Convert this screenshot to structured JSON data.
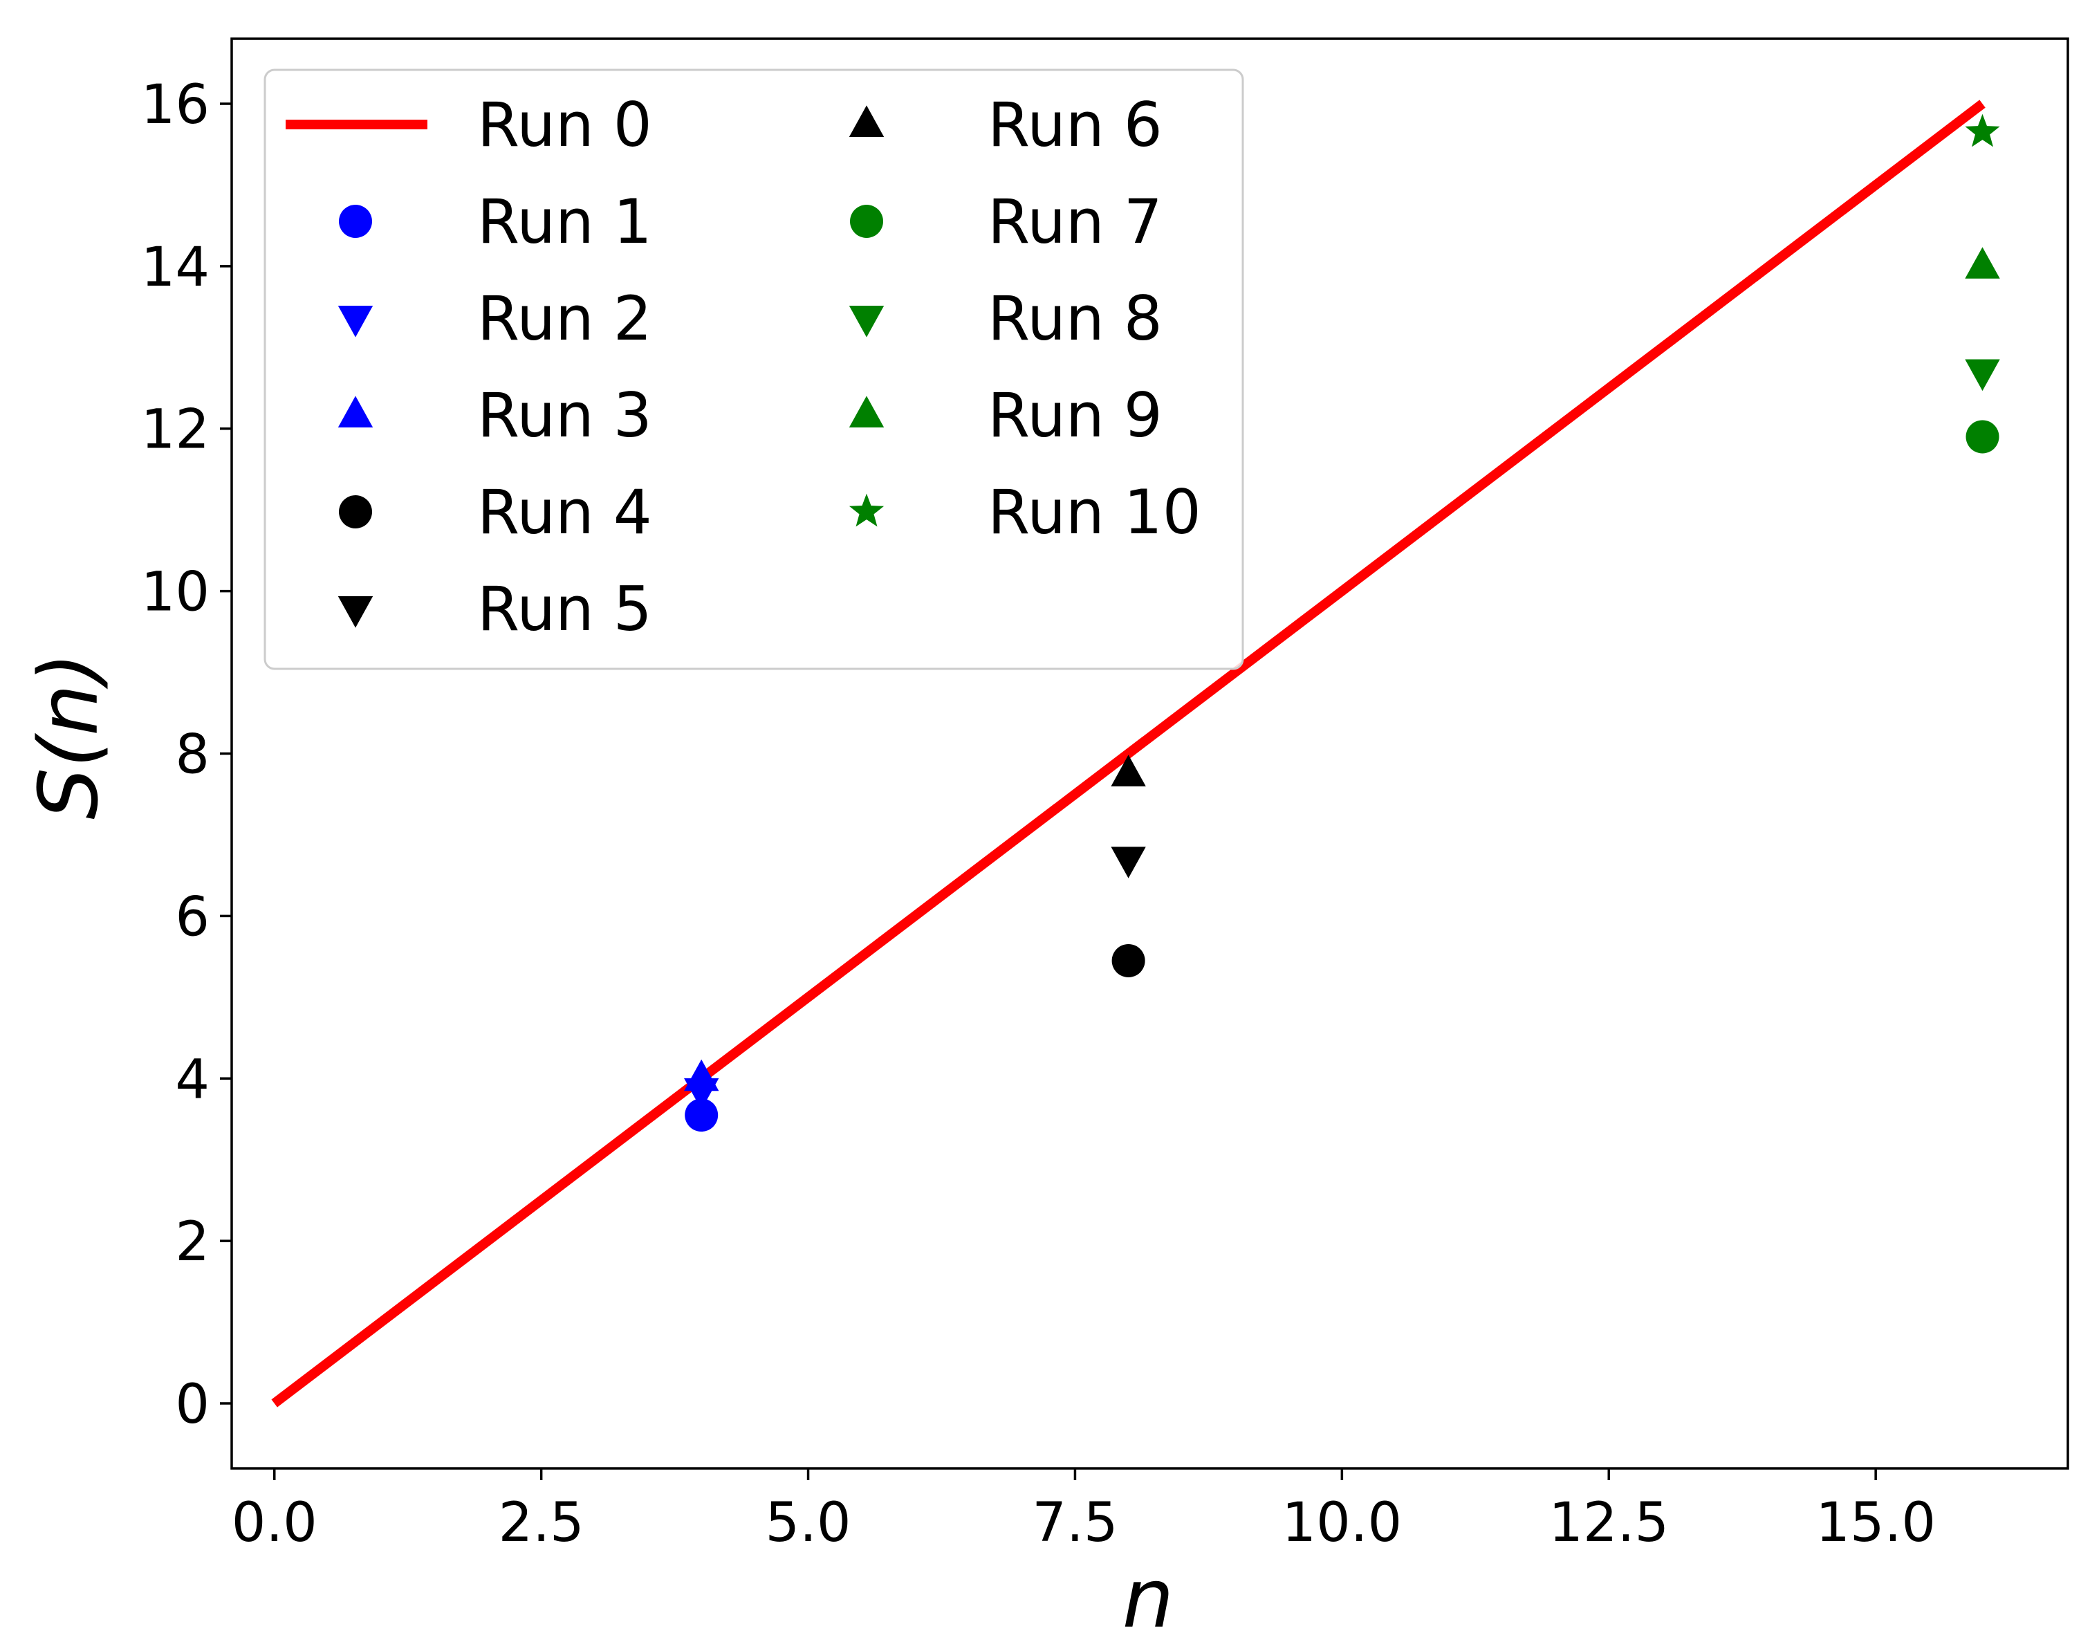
{
  "chart_data": {
    "type": "scatter",
    "title": "",
    "xlabel": "n",
    "ylabel": "S(n)",
    "xlim": [
      -0.4,
      16.8
    ],
    "ylim": [
      -0.8,
      16.8
    ],
    "xticks": [
      0.0,
      2.5,
      5.0,
      7.5,
      10.0,
      12.5,
      15.0
    ],
    "xtick_labels": [
      "0.0",
      "2.5",
      "5.0",
      "7.5",
      "10.0",
      "12.5",
      "15.0"
    ],
    "yticks": [
      0,
      2,
      4,
      6,
      8,
      10,
      12,
      14,
      16
    ],
    "ytick_labels": [
      "0",
      "2",
      "4",
      "6",
      "8",
      "10",
      "12",
      "14",
      "16"
    ],
    "grid": false,
    "legend": {
      "placement": "top-left",
      "columns": 2
    },
    "series": [
      {
        "name": "Run 0",
        "kind": "line",
        "color": "#ff0000",
        "x": [
          0,
          16
        ],
        "y": [
          0,
          16
        ]
      },
      {
        "name": "Run 1",
        "kind": "marker",
        "marker": "circle",
        "color": "#0000ff",
        "x": [
          4
        ],
        "y": [
          3.55
        ]
      },
      {
        "name": "Run 2",
        "kind": "marker",
        "marker": "triangle-down",
        "color": "#0000ff",
        "x": [
          4
        ],
        "y": [
          3.85
        ]
      },
      {
        "name": "Run 3",
        "kind": "marker",
        "marker": "triangle-up",
        "color": "#0000ff",
        "x": [
          4
        ],
        "y": [
          4.0
        ]
      },
      {
        "name": "Run 4",
        "kind": "marker",
        "marker": "circle",
        "color": "#000000",
        "x": [
          8
        ],
        "y": [
          5.45
        ]
      },
      {
        "name": "Run 5",
        "kind": "marker",
        "marker": "triangle-down",
        "color": "#000000",
        "x": [
          8
        ],
        "y": [
          6.7
        ]
      },
      {
        "name": "Run 6",
        "kind": "marker",
        "marker": "triangle-up",
        "color": "#000000",
        "x": [
          8
        ],
        "y": [
          7.75
        ]
      },
      {
        "name": "Run 7",
        "kind": "marker",
        "marker": "circle",
        "color": "#008000",
        "x": [
          16
        ],
        "y": [
          11.9
        ]
      },
      {
        "name": "Run 8",
        "kind": "marker",
        "marker": "triangle-down",
        "color": "#008000",
        "x": [
          16
        ],
        "y": [
          12.7
        ]
      },
      {
        "name": "Run 9",
        "kind": "marker",
        "marker": "triangle-up",
        "color": "#008000",
        "x": [
          16
        ],
        "y": [
          14.0
        ]
      },
      {
        "name": "Run 10",
        "kind": "marker",
        "marker": "star",
        "color": "#008000",
        "x": [
          16
        ],
        "y": [
          15.65
        ]
      }
    ]
  }
}
